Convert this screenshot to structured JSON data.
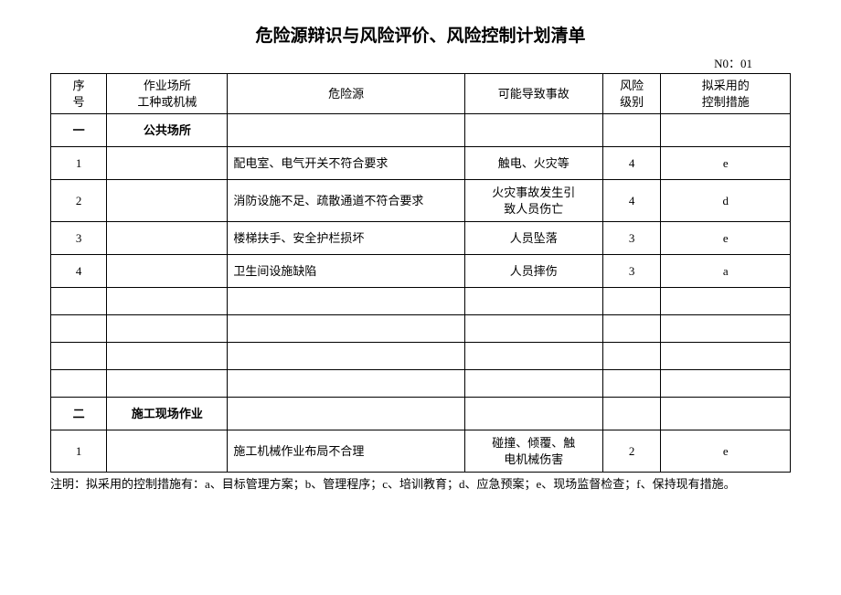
{
  "title": "危险源辩识与风险评价、风险控制计划清单",
  "doc_no": "N0：01",
  "headers": {
    "idx": "序\n号",
    "place": "作业场所\n工种或机械",
    "risk": "危险源",
    "accident": "可能导致事故",
    "level": "风险\n级别",
    "ctrl": "拟采用的\n控制措施"
  },
  "sections": [
    {
      "idx": "一",
      "place": "公共场所",
      "rows": [
        {
          "n": "1",
          "risk": "配电室、电气开关不符合要求",
          "acc": "触电、火灾等",
          "lvl": "4",
          "ctrl": "e"
        },
        {
          "n": "2",
          "risk": "消防设施不足、疏散通道不符合要求",
          "acc": "火灾事故发生引\n致人员伤亡",
          "lvl": "4",
          "ctrl": "d",
          "tall": true
        },
        {
          "n": "3",
          "risk": "楼梯扶手、安全护栏损坏",
          "acc": "人员坠落",
          "lvl": "3",
          "ctrl": "e"
        },
        {
          "n": "4",
          "risk": "卫生间设施缺陷",
          "acc": "人员摔伤",
          "lvl": "3",
          "ctrl": "a"
        }
      ],
      "blank_rows": 4
    },
    {
      "idx": "二",
      "place": "施工现场作业",
      "rows": [
        {
          "n": "1",
          "risk": "施工机械作业布局不合理",
          "acc": "碰撞、倾覆、触\n电机械伤害",
          "lvl": "2",
          "ctrl": "e",
          "tall": true
        }
      ],
      "blank_rows": 0
    }
  ],
  "note": "注明：拟采用的控制措施有：a、目标管理方案；b、管理程序；c、培训教育；d、应急预案；e、现场监督检查；f、保持现有措施。"
}
